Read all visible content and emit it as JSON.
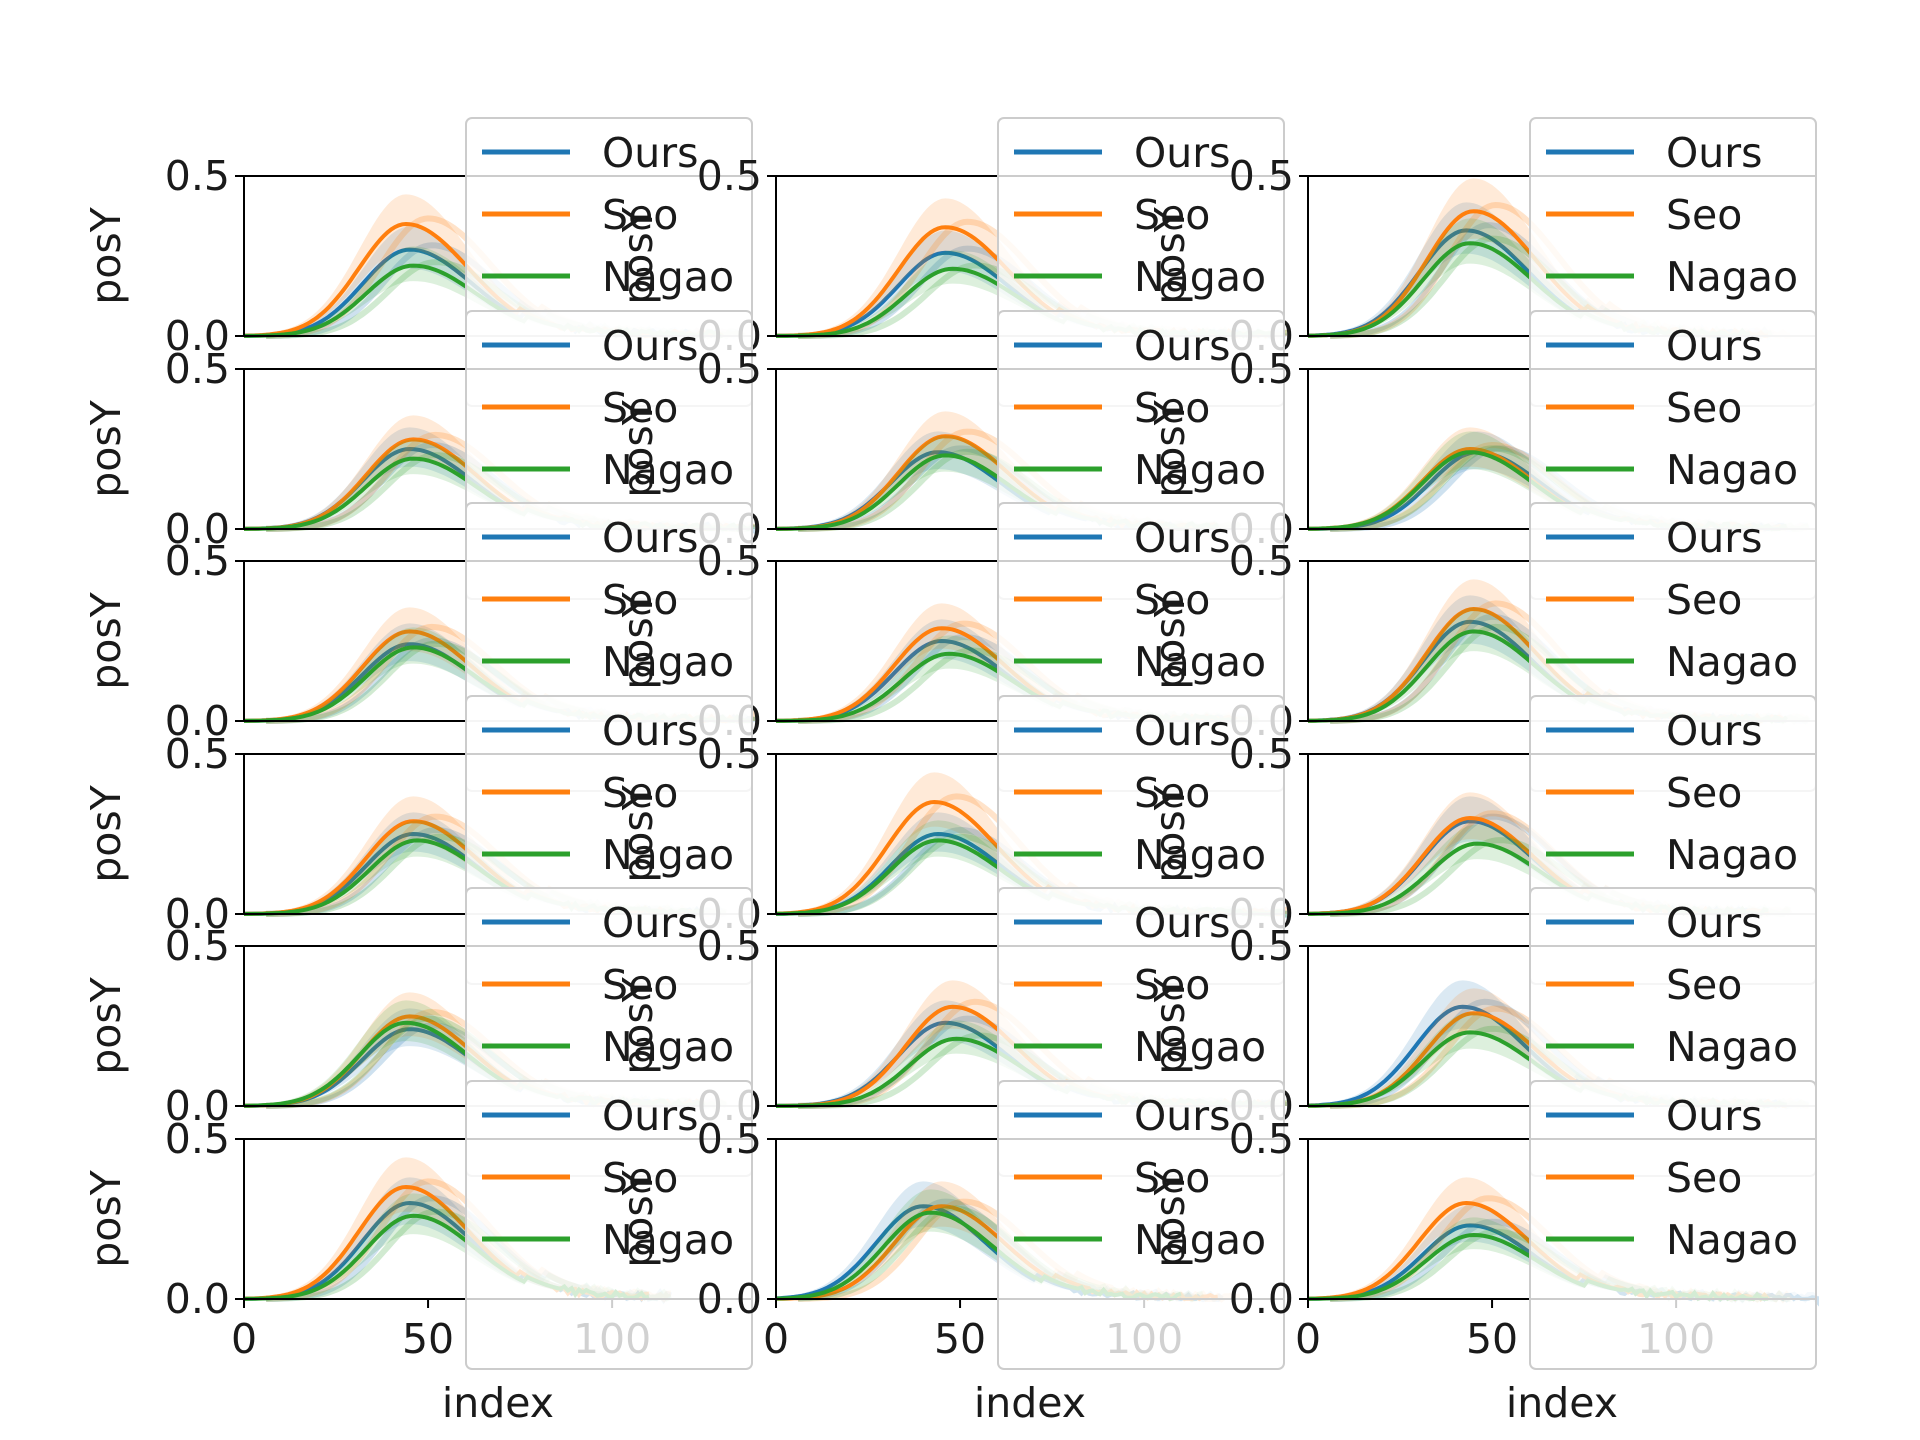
{
  "figure": {
    "rows": 6,
    "cols": 3,
    "colors": {
      "Ours": "#1f77b4",
      "Seo": "#ff7f0e",
      "Nagao": "#2ca02c",
      "axis": "#000000",
      "legend_border": "#cccccc"
    }
  },
  "chart_data": [
    {
      "type": "line",
      "row": 1,
      "col": 1,
      "xlabel": "",
      "ylabel": "posY",
      "xlim": [
        0,
        138
      ],
      "ylim": [
        0,
        0.5
      ],
      "yticks": [
        "0.0",
        "0.5"
      ],
      "xticks": [],
      "legend": [
        "Ours",
        "Seo",
        "Nagao"
      ],
      "legend_position": "upper-right",
      "series": [
        {
          "name": "Ours",
          "peak_x": 45,
          "peak_y": 0.27,
          "x_end": 130
        },
        {
          "name": "Seo",
          "peak_x": 44,
          "peak_y": 0.35,
          "x_end": 130
        },
        {
          "name": "Nagao",
          "peak_x": 46,
          "peak_y": 0.22,
          "x_end": 130
        }
      ]
    },
    {
      "type": "line",
      "row": 1,
      "col": 2,
      "xlabel": "",
      "ylabel": "posY",
      "xlim": [
        0,
        138
      ],
      "ylim": [
        0,
        0.5
      ],
      "yticks": [
        "0.0",
        "0.5"
      ],
      "xticks": [],
      "legend": [
        "Ours",
        "Seo",
        "Nagao"
      ],
      "legend_position": "upper-right",
      "series": [
        {
          "name": "Ours",
          "peak_x": 46,
          "peak_y": 0.26,
          "x_end": 135
        },
        {
          "name": "Seo",
          "peak_x": 46,
          "peak_y": 0.34,
          "x_end": 135
        },
        {
          "name": "Nagao",
          "peak_x": 48,
          "peak_y": 0.21,
          "x_end": 135
        }
      ]
    },
    {
      "type": "line",
      "row": 1,
      "col": 3,
      "xlabel": "",
      "ylabel": "posY",
      "xlim": [
        0,
        138
      ],
      "ylim": [
        0,
        0.5
      ],
      "yticks": [
        "0.0",
        "0.5"
      ],
      "xticks": [],
      "legend": [
        "Ours",
        "Seo",
        "Nagao"
      ],
      "legend_position": "upper-right",
      "series": [
        {
          "name": "Ours",
          "peak_x": 43,
          "peak_y": 0.33,
          "x_end": 120
        },
        {
          "name": "Seo",
          "peak_x": 45,
          "peak_y": 0.39,
          "x_end": 125
        },
        {
          "name": "Nagao",
          "peak_x": 44,
          "peak_y": 0.29,
          "x_end": 120
        }
      ]
    },
    {
      "type": "line",
      "row": 2,
      "col": 1,
      "xlabel": "",
      "ylabel": "posY",
      "xlim": [
        0,
        138
      ],
      "ylim": [
        0,
        0.5
      ],
      "yticks": [
        "0.0",
        "0.5"
      ],
      "xticks": [],
      "legend": [
        "Ours",
        "Seo",
        "Nagao"
      ],
      "legend_position": "upper-right",
      "series": [
        {
          "name": "Ours",
          "peak_x": 45,
          "peak_y": 0.25,
          "x_end": 135
        },
        {
          "name": "Seo",
          "peak_x": 46,
          "peak_y": 0.28,
          "x_end": 135
        },
        {
          "name": "Nagao",
          "peak_x": 46,
          "peak_y": 0.22,
          "x_end": 138
        }
      ]
    },
    {
      "type": "line",
      "row": 2,
      "col": 2,
      "xlabel": "",
      "ylabel": "posY",
      "xlim": [
        0,
        138
      ],
      "ylim": [
        0,
        0.5
      ],
      "yticks": [
        "0.0",
        "0.5"
      ],
      "xticks": [],
      "legend": [
        "Ours",
        "Seo",
        "Nagao"
      ],
      "legend_position": "upper-right",
      "series": [
        {
          "name": "Ours",
          "peak_x": 44,
          "peak_y": 0.24,
          "x_end": 120
        },
        {
          "name": "Seo",
          "peak_x": 46,
          "peak_y": 0.29,
          "x_end": 120
        },
        {
          "name": "Nagao",
          "peak_x": 46,
          "peak_y": 0.23,
          "x_end": 120
        }
      ]
    },
    {
      "type": "line",
      "row": 2,
      "col": 3,
      "xlabel": "",
      "ylabel": "posY",
      "xlim": [
        0,
        138
      ],
      "ylim": [
        0,
        0.5
      ],
      "yticks": [
        "0.0",
        "0.5"
      ],
      "xticks": [],
      "legend": [
        "Ours",
        "Seo",
        "Nagao"
      ],
      "legend_position": "upper-right",
      "series": [
        {
          "name": "Ours",
          "peak_x": 46,
          "peak_y": 0.24,
          "x_end": 130
        },
        {
          "name": "Seo",
          "peak_x": 44,
          "peak_y": 0.25,
          "x_end": 130
        },
        {
          "name": "Nagao",
          "peak_x": 44,
          "peak_y": 0.24,
          "x_end": 130
        }
      ]
    },
    {
      "type": "line",
      "row": 3,
      "col": 1,
      "xlabel": "",
      "ylabel": "posY",
      "xlim": [
        0,
        138
      ],
      "ylim": [
        0,
        0.5
      ],
      "yticks": [
        "0.0",
        "0.5"
      ],
      "xticks": [],
      "legend": [
        "Ours",
        "Seo",
        "Nagao"
      ],
      "legend_position": "upper-right",
      "series": [
        {
          "name": "Ours",
          "peak_x": 45,
          "peak_y": 0.24,
          "x_end": 138
        },
        {
          "name": "Seo",
          "peak_x": 45,
          "peak_y": 0.28,
          "x_end": 138
        },
        {
          "name": "Nagao",
          "peak_x": 46,
          "peak_y": 0.23,
          "x_end": 138
        }
      ]
    },
    {
      "type": "line",
      "row": 3,
      "col": 2,
      "xlabel": "",
      "ylabel": "posY",
      "xlim": [
        0,
        138
      ],
      "ylim": [
        0,
        0.5
      ],
      "yticks": [
        "0.0",
        "0.5"
      ],
      "xticks": [],
      "legend": [
        "Ours",
        "Seo",
        "Nagao"
      ],
      "legend_position": "upper-right",
      "series": [
        {
          "name": "Ours",
          "peak_x": 45,
          "peak_y": 0.25,
          "x_end": 125
        },
        {
          "name": "Seo",
          "peak_x": 45,
          "peak_y": 0.29,
          "x_end": 125
        },
        {
          "name": "Nagao",
          "peak_x": 47,
          "peak_y": 0.21,
          "x_end": 125
        }
      ]
    },
    {
      "type": "line",
      "row": 3,
      "col": 3,
      "xlabel": "",
      "ylabel": "posY",
      "xlim": [
        0,
        138
      ],
      "ylim": [
        0,
        0.5
      ],
      "yticks": [
        "0.0",
        "0.5"
      ],
      "xticks": [],
      "legend": [
        "Ours",
        "Seo",
        "Nagao"
      ],
      "legend_position": "upper-right",
      "series": [
        {
          "name": "Ours",
          "peak_x": 44,
          "peak_y": 0.31,
          "x_end": 130
        },
        {
          "name": "Seo",
          "peak_x": 45,
          "peak_y": 0.35,
          "x_end": 130
        },
        {
          "name": "Nagao",
          "peak_x": 45,
          "peak_y": 0.28,
          "x_end": 130
        }
      ]
    },
    {
      "type": "line",
      "row": 4,
      "col": 1,
      "xlabel": "",
      "ylabel": "posY",
      "xlim": [
        0,
        138
      ],
      "ylim": [
        0,
        0.5
      ],
      "yticks": [
        "0.0",
        "0.5"
      ],
      "xticks": [],
      "legend": [
        "Ours",
        "Seo",
        "Nagao"
      ],
      "legend_position": "upper-right",
      "series": [
        {
          "name": "Ours",
          "peak_x": 46,
          "peak_y": 0.25,
          "x_end": 125
        },
        {
          "name": "Seo",
          "peak_x": 46,
          "peak_y": 0.29,
          "x_end": 125
        },
        {
          "name": "Nagao",
          "peak_x": 47,
          "peak_y": 0.23,
          "x_end": 125
        }
      ]
    },
    {
      "type": "line",
      "row": 4,
      "col": 2,
      "xlabel": "",
      "ylabel": "posY",
      "xlim": [
        0,
        138
      ],
      "ylim": [
        0,
        0.5
      ],
      "yticks": [
        "0.0",
        "0.5"
      ],
      "xticks": [],
      "legend": [
        "Ours",
        "Seo",
        "Nagao"
      ],
      "legend_position": "upper-right",
      "series": [
        {
          "name": "Ours",
          "peak_x": 44,
          "peak_y": 0.25,
          "x_end": 138
        },
        {
          "name": "Seo",
          "peak_x": 43,
          "peak_y": 0.35,
          "x_end": 138
        },
        {
          "name": "Nagao",
          "peak_x": 44,
          "peak_y": 0.23,
          "x_end": 138
        }
      ]
    },
    {
      "type": "line",
      "row": 4,
      "col": 3,
      "xlabel": "",
      "ylabel": "posY",
      "xlim": [
        0,
        138
      ],
      "ylim": [
        0,
        0.5
      ],
      "yticks": [
        "0.0",
        "0.5"
      ],
      "xticks": [],
      "legend": [
        "Ours",
        "Seo",
        "Nagao"
      ],
      "legend_position": "upper-right",
      "series": [
        {
          "name": "Ours",
          "peak_x": 44,
          "peak_y": 0.29,
          "x_end": 125
        },
        {
          "name": "Seo",
          "peak_x": 44,
          "peak_y": 0.3,
          "x_end": 125
        },
        {
          "name": "Nagao",
          "peak_x": 46,
          "peak_y": 0.22,
          "x_end": 125
        }
      ]
    },
    {
      "type": "line",
      "row": 5,
      "col": 1,
      "xlabel": "",
      "ylabel": "posY",
      "xlim": [
        0,
        138
      ],
      "ylim": [
        0,
        0.5
      ],
      "yticks": [
        "0.0",
        "0.5"
      ],
      "xticks": [],
      "legend": [
        "Ours",
        "Seo",
        "Nagao"
      ],
      "legend_position": "upper-right",
      "series": [
        {
          "name": "Ours",
          "peak_x": 45,
          "peak_y": 0.24,
          "x_end": 125
        },
        {
          "name": "Seo",
          "peak_x": 45,
          "peak_y": 0.28,
          "x_end": 125
        },
        {
          "name": "Nagao",
          "peak_x": 44,
          "peak_y": 0.26,
          "x_end": 125
        }
      ]
    },
    {
      "type": "line",
      "row": 5,
      "col": 2,
      "xlabel": "",
      "ylabel": "posY",
      "xlim": [
        0,
        138
      ],
      "ylim": [
        0,
        0.5
      ],
      "yticks": [
        "0.0",
        "0.5"
      ],
      "xticks": [],
      "legend": [
        "Ours",
        "Seo",
        "Nagao"
      ],
      "legend_position": "upper-right",
      "series": [
        {
          "name": "Ours",
          "peak_x": 46,
          "peak_y": 0.26,
          "x_end": 135
        },
        {
          "name": "Seo",
          "peak_x": 48,
          "peak_y": 0.31,
          "x_end": 135
        },
        {
          "name": "Nagao",
          "peak_x": 49,
          "peak_y": 0.21,
          "x_end": 135
        }
      ]
    },
    {
      "type": "line",
      "row": 5,
      "col": 3,
      "xlabel": "",
      "ylabel": "posY",
      "xlim": [
        0,
        138
      ],
      "ylim": [
        0,
        0.5
      ],
      "yticks": [
        "0.0",
        "0.5"
      ],
      "xticks": [],
      "legend": [
        "Ours",
        "Seo",
        "Nagao"
      ],
      "legend_position": "upper-right",
      "series": [
        {
          "name": "Ours",
          "peak_x": 42,
          "peak_y": 0.31,
          "x_end": 130
        },
        {
          "name": "Seo",
          "peak_x": 45,
          "peak_y": 0.29,
          "x_end": 130
        },
        {
          "name": "Nagao",
          "peak_x": 44,
          "peak_y": 0.23,
          "x_end": 130
        }
      ]
    },
    {
      "type": "line",
      "row": 6,
      "col": 1,
      "xlabel": "index",
      "ylabel": "posY",
      "xlim": [
        0,
        138
      ],
      "ylim": [
        0,
        0.5
      ],
      "yticks": [
        "0.0",
        "0.5"
      ],
      "xticks": [
        "0",
        "50",
        "100"
      ],
      "legend": [
        "Ours",
        "Seo",
        "Nagao"
      ],
      "legend_position": "upper-right",
      "series": [
        {
          "name": "Ours",
          "peak_x": 45,
          "peak_y": 0.3,
          "x_end": 110
        },
        {
          "name": "Seo",
          "peak_x": 44,
          "peak_y": 0.35,
          "x_end": 110
        },
        {
          "name": "Nagao",
          "peak_x": 46,
          "peak_y": 0.26,
          "x_end": 110
        }
      ]
    },
    {
      "type": "line",
      "row": 6,
      "col": 2,
      "xlabel": "index",
      "ylabel": "posY",
      "xlim": [
        0,
        138
      ],
      "ylim": [
        0,
        0.5
      ],
      "yticks": [
        "0.0",
        "0.5"
      ],
      "xticks": [
        "0",
        "50",
        "100"
      ],
      "legend": [
        "Ours",
        "Seo",
        "Nagao"
      ],
      "legend_position": "upper-right",
      "series": [
        {
          "name": "Ours",
          "peak_x": 40,
          "peak_y": 0.29,
          "x_end": 115
        },
        {
          "name": "Seo",
          "peak_x": 45,
          "peak_y": 0.29,
          "x_end": 120
        },
        {
          "name": "Nagao",
          "peak_x": 42,
          "peak_y": 0.27,
          "x_end": 110
        }
      ]
    },
    {
      "type": "line",
      "row": 6,
      "col": 3,
      "xlabel": "index",
      "ylabel": "posY",
      "xlim": [
        0,
        138
      ],
      "ylim": [
        0,
        0.5
      ],
      "yticks": [
        "0.0",
        "0.5"
      ],
      "xticks": [
        "0",
        "50",
        "100"
      ],
      "legend": [
        "Ours",
        "Seo",
        "Nagao"
      ],
      "legend_position": "upper-right",
      "series": [
        {
          "name": "Ours",
          "peak_x": 44,
          "peak_y": 0.23,
          "x_end": 138
        },
        {
          "name": "Seo",
          "peak_x": 43,
          "peak_y": 0.3,
          "x_end": 125
        },
        {
          "name": "Nagao",
          "peak_x": 45,
          "peak_y": 0.2,
          "x_end": 125
        }
      ]
    }
  ]
}
